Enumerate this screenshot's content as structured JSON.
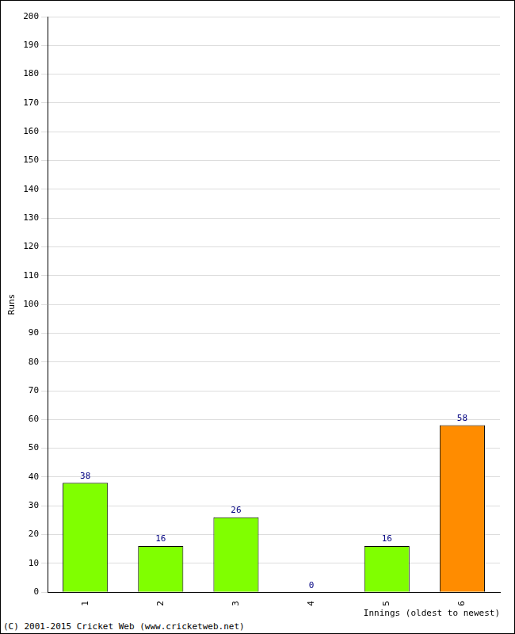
{
  "chart_data": {
    "type": "bar",
    "x_label": "Innings (oldest to newest)",
    "y_label": "Runs",
    "annotations": [
      "(C) 2001-2015 Cricket Web (www.cricketweb.net)"
    ],
    "categories": [
      "1",
      "2",
      "3",
      "4",
      "5",
      "6"
    ],
    "values": [
      38,
      16,
      26,
      0,
      16,
      58
    ],
    "colors": [
      "#80ff00",
      "#80ff00",
      "#80ff00",
      "#80ff00",
      "#80ff00",
      "#ff8c00"
    ],
    "ylim": [
      0,
      200
    ],
    "yticks": [
      0,
      10,
      20,
      30,
      40,
      50,
      60,
      70,
      80,
      90,
      100,
      110,
      120,
      130,
      140,
      150,
      160,
      170,
      180,
      190,
      200
    ],
    "grid": true,
    "data_labels": true
  }
}
